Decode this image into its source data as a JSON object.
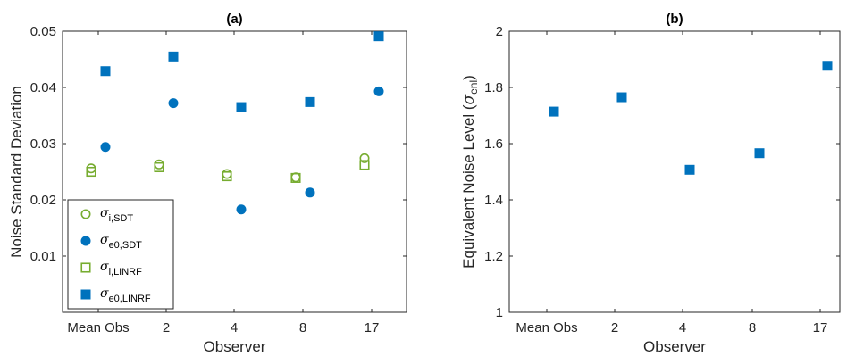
{
  "colors": {
    "green": "#77AC30",
    "blue": "#0072BD",
    "axis": "#262626"
  },
  "chart_data": [
    {
      "type": "scatter",
      "title": "(a)",
      "xlabel": "Observer",
      "ylabel": "Noise Standard Deviation",
      "categories": [
        "Mean Obs",
        "2",
        "4",
        "8",
        "17"
      ],
      "ylim": [
        0,
        0.05
      ],
      "yticks": [
        "0.01",
        "0.02",
        "0.03",
        "0.04",
        "0.05"
      ],
      "grid": false,
      "legend_position": "bottom-left",
      "series": [
        {
          "name": "σ",
          "sub": "i,SDT",
          "marker": "circle-open",
          "color": "#77AC30",
          "values": [
            0.0256,
            0.0263,
            0.0246,
            0.024,
            0.0274
          ]
        },
        {
          "name": "σ",
          "sub": "e0,SDT",
          "marker": "circle-filled",
          "color": "#0072BD",
          "values": [
            0.0294,
            0.0372,
            0.0183,
            0.0213,
            0.0393
          ]
        },
        {
          "name": "σ",
          "sub": "i,LINRF",
          "marker": "square-open",
          "color": "#77AC30",
          "values": [
            0.025,
            0.0258,
            0.0242,
            0.0239,
            0.0262
          ]
        },
        {
          "name": "σ",
          "sub": "e0,LINRF",
          "marker": "square-filled",
          "color": "#0072BD",
          "values": [
            0.0429,
            0.0455,
            0.0365,
            0.0374,
            0.0491
          ]
        }
      ]
    },
    {
      "type": "scatter",
      "title": "(b)",
      "xlabel": "Observer",
      "ylabel_main": "Equivalent Noise Level (",
      "ylabel_sym": "σ",
      "ylabel_sub": "enl",
      "ylabel_end": ")",
      "categories": [
        "Mean Obs",
        "2",
        "4",
        "8",
        "17"
      ],
      "ylim": [
        1,
        2
      ],
      "yticks": [
        "1",
        "1.2",
        "1.4",
        "1.6",
        "1.8",
        "2"
      ],
      "grid": false,
      "series": [
        {
          "marker": "square-filled",
          "color": "#0072BD",
          "values": [
            1.714,
            1.765,
            1.507,
            1.566,
            1.877
          ]
        }
      ]
    }
  ]
}
